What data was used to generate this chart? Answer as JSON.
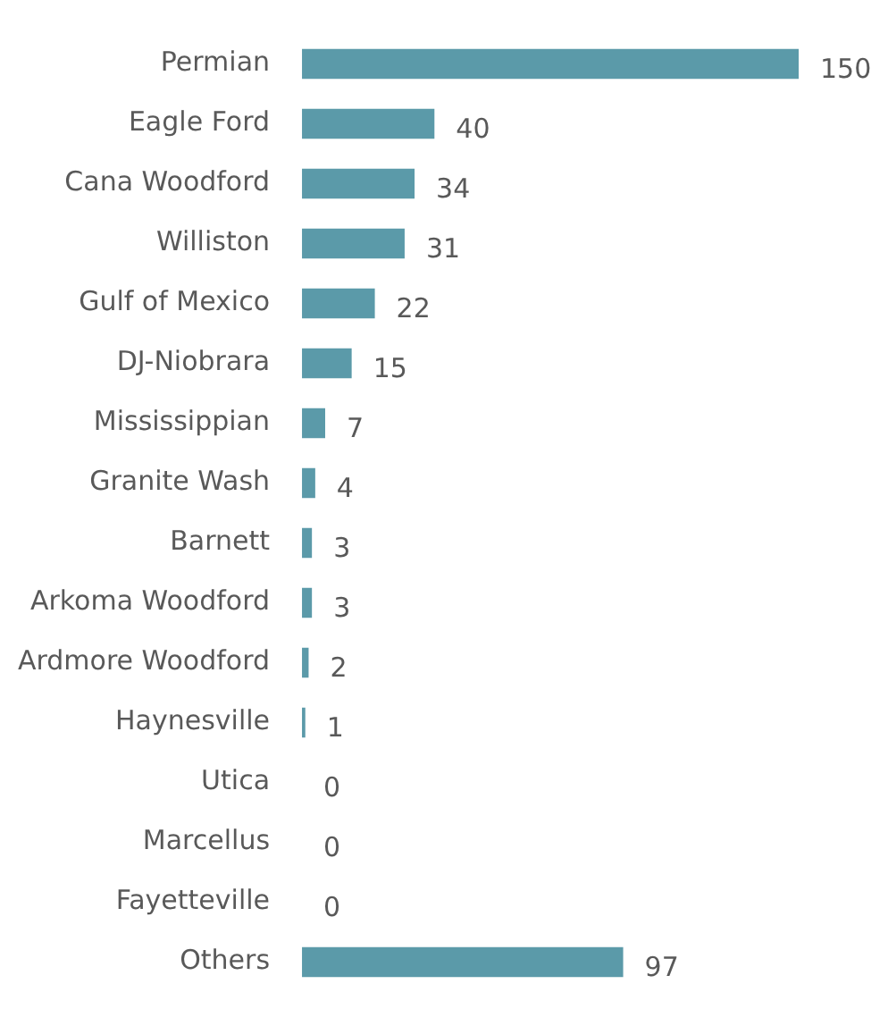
{
  "chart_data": {
    "type": "bar",
    "orientation": "horizontal",
    "categories": [
      "Permian",
      "Eagle Ford",
      "Cana Woodford",
      "Williston",
      "Gulf of Mexico",
      "DJ-Niobrara",
      "Mississippian",
      "Granite Wash",
      "Barnett",
      "Arkoma Woodford",
      "Ardmore Woodford",
      "Haynesville",
      "Utica",
      "Marcellus",
      "Fayetteville",
      "Others"
    ],
    "values": [
      150,
      40,
      34,
      31,
      22,
      15,
      7,
      4,
      3,
      3,
      2,
      1,
      0,
      0,
      0,
      97
    ],
    "color": "#5b9aa9",
    "data_labels": true,
    "legend": false,
    "tick_labels": "y"
  }
}
